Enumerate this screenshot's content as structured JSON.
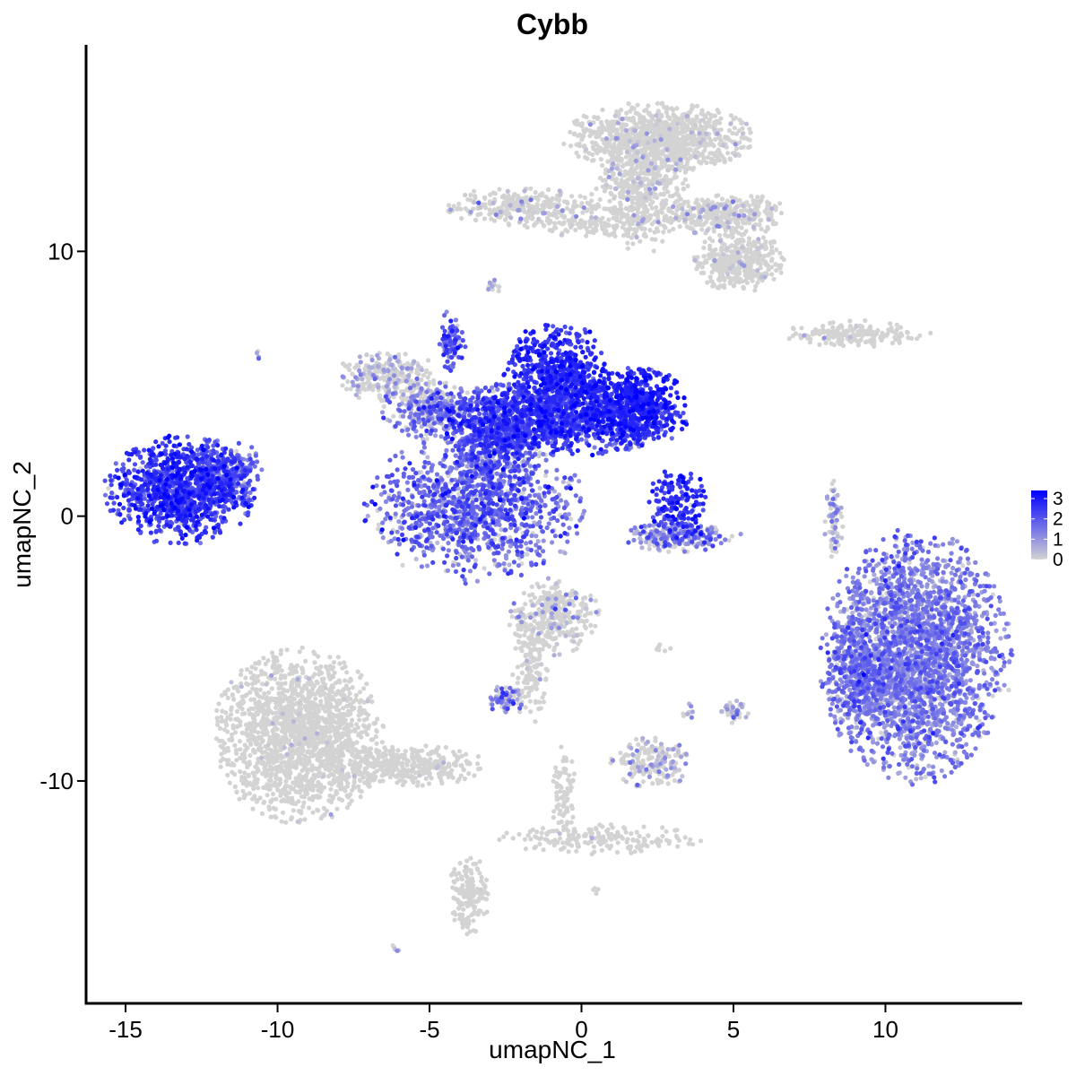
{
  "chart_data": {
    "type": "scatter",
    "title": "Cybb",
    "xlabel": "umapNC_1",
    "ylabel": "umapNC_2",
    "xlim": [
      -16.3,
      14.5
    ],
    "ylim": [
      -18.4,
      17.8
    ],
    "x_ticks": [
      -15,
      -10,
      -5,
      0,
      5,
      10
    ],
    "x_tick_labels": [
      "-15",
      "-10",
      "-5",
      "0",
      "5",
      "10"
    ],
    "y_ticks": [
      -10,
      0,
      10
    ],
    "y_tick_labels": [
      "-10",
      "0",
      "10"
    ],
    "grid": false,
    "legend": {
      "placement": "right",
      "type": "colorbar",
      "ticks": [
        0,
        1,
        2,
        3
      ],
      "tick_labels": [
        "0",
        "1",
        "2",
        "3"
      ],
      "low_color": "#d3d3d3",
      "high_color": "#0000ff"
    },
    "color_scale": {
      "min": 0,
      "max": 3.4,
      "low": "#d3d3d3",
      "high": "#0000ff"
    },
    "clusters": [
      {
        "name": "left-island",
        "cx": -13.2,
        "cy": 1.0,
        "rx": 1.5,
        "ry": 1.25,
        "n": 1100,
        "expr_mean": 2.4,
        "expr_sd": 0.5,
        "zero_frac": 0.02
      },
      {
        "name": "left-island-tail",
        "cx": -11.6,
        "cy": 1.6,
        "rx": 0.7,
        "ry": 0.8,
        "n": 220,
        "expr_mean": 1.9,
        "expr_sd": 0.6,
        "zero_frac": 0.05
      },
      {
        "name": "center-bulb",
        "cx": -3.5,
        "cy": 0.3,
        "rx": 2.2,
        "ry": 1.7,
        "n": 1200,
        "expr_mean": 1.7,
        "expr_sd": 0.6,
        "zero_frac": 0.1
      },
      {
        "name": "center-stem",
        "cx": -2.8,
        "cy": 2.9,
        "rx": 0.9,
        "ry": 1.3,
        "n": 500,
        "expr_mean": 2.0,
        "expr_sd": 0.6,
        "zero_frac": 0.05
      },
      {
        "name": "center-band",
        "cx": -0.8,
        "cy": 3.6,
        "rx": 2.6,
        "ry": 0.8,
        "n": 900,
        "expr_mean": 2.4,
        "expr_sd": 0.5,
        "zero_frac": 0.02
      },
      {
        "name": "center-top-lobe",
        "cx": -0.8,
        "cy": 5.2,
        "rx": 1.1,
        "ry": 1.3,
        "n": 700,
        "expr_mean": 2.6,
        "expr_sd": 0.4,
        "zero_frac": 0.01
      },
      {
        "name": "center-right-lobe",
        "cx": 1.7,
        "cy": 4.2,
        "rx": 1.1,
        "ry": 0.9,
        "n": 600,
        "expr_mean": 2.7,
        "expr_sd": 0.4,
        "zero_frac": 0.01
      },
      {
        "name": "center-left-arm",
        "cx": -6.4,
        "cy": 5.3,
        "rx": 1.0,
        "ry": 0.6,
        "n": 280,
        "expr_mean": 0.4,
        "expr_sd": 0.6,
        "zero_frac": 0.6
      },
      {
        "name": "center-left-bridge",
        "cx": -5.0,
        "cy": 4.0,
        "rx": 1.0,
        "ry": 0.7,
        "n": 300,
        "expr_mean": 1.3,
        "expr_sd": 0.7,
        "zero_frac": 0.2
      },
      {
        "name": "center-spike",
        "cx": -4.3,
        "cy": 6.6,
        "rx": 0.3,
        "ry": 0.7,
        "n": 90,
        "expr_mean": 2.0,
        "expr_sd": 0.6,
        "zero_frac": 0.1
      },
      {
        "name": "small-right-cluster",
        "cx": 3.2,
        "cy": 0.5,
        "rx": 0.6,
        "ry": 0.8,
        "n": 160,
        "expr_mean": 2.5,
        "expr_sd": 0.5,
        "zero_frac": 0.03
      },
      {
        "name": "small-right-arc",
        "cx": 3.3,
        "cy": -0.8,
        "rx": 1.2,
        "ry": 0.35,
        "n": 230,
        "expr_mean": 1.3,
        "expr_sd": 0.7,
        "zero_frac": 0.25
      },
      {
        "name": "right-big-cluster",
        "cx": 11.0,
        "cy": -5.3,
        "rx": 1.9,
        "ry": 2.9,
        "n": 2600,
        "expr_mean": 1.3,
        "expr_sd": 0.5,
        "zero_frac": 0.05
      },
      {
        "name": "right-big-cluster-left",
        "cx": 9.0,
        "cy": -6.0,
        "rx": 0.6,
        "ry": 1.5,
        "n": 300,
        "expr_mean": 1.4,
        "expr_sd": 0.6,
        "zero_frac": 0.05
      },
      {
        "name": "right-thin-streak",
        "cx": 8.3,
        "cy": -0.1,
        "rx": 0.2,
        "ry": 1.0,
        "n": 70,
        "expr_mean": 0.8,
        "expr_sd": 0.7,
        "zero_frac": 0.45
      },
      {
        "name": "top-funnel-head",
        "cx": 2.5,
        "cy": 14.3,
        "rx": 1.9,
        "ry": 0.8,
        "n": 900,
        "expr_mean": 0.1,
        "expr_sd": 0.5,
        "zero_frac": 0.9
      },
      {
        "name": "top-funnel-body",
        "cx": 2.0,
        "cy": 12.3,
        "rx": 1.0,
        "ry": 1.4,
        "n": 500,
        "expr_mean": 0.1,
        "expr_sd": 0.5,
        "zero_frac": 0.9
      },
      {
        "name": "top-right-arm",
        "cx": 4.7,
        "cy": 11.4,
        "rx": 1.3,
        "ry": 0.5,
        "n": 350,
        "expr_mean": 0.3,
        "expr_sd": 0.6,
        "zero_frac": 0.8
      },
      {
        "name": "top-right-blob",
        "cx": 5.2,
        "cy": 9.6,
        "rx": 0.9,
        "ry": 0.7,
        "n": 360,
        "expr_mean": 0.15,
        "expr_sd": 0.5,
        "zero_frac": 0.88
      },
      {
        "name": "top-left-arm",
        "cx": -1.8,
        "cy": 11.7,
        "rx": 1.6,
        "ry": 0.45,
        "n": 300,
        "expr_mean": 0.3,
        "expr_sd": 0.6,
        "zero_frac": 0.82
      },
      {
        "name": "top-left-arm-band",
        "cx": 0.2,
        "cy": 11.0,
        "rx": 1.3,
        "ry": 0.25,
        "n": 110,
        "expr_mean": 0.2,
        "expr_sd": 0.5,
        "zero_frac": 0.85
      },
      {
        "name": "right-upper-streak",
        "cx": 9.0,
        "cy": 6.9,
        "rx": 1.5,
        "ry": 0.3,
        "n": 180,
        "expr_mean": 0.05,
        "expr_sd": 0.4,
        "zero_frac": 0.92
      },
      {
        "name": "bottom-left-head",
        "cx": -9.3,
        "cy": -8.3,
        "rx": 1.7,
        "ry": 2.0,
        "n": 1700,
        "expr_mean": 0.02,
        "expr_sd": 0.3,
        "zero_frac": 0.97
      },
      {
        "name": "bottom-left-tail",
        "cx": -5.8,
        "cy": -9.4,
        "rx": 1.6,
        "ry": 0.5,
        "n": 350,
        "expr_mean": 0.03,
        "expr_sd": 0.3,
        "zero_frac": 0.96
      },
      {
        "name": "bottom-left-stalk",
        "cx": -3.7,
        "cy": -14.3,
        "rx": 0.4,
        "ry": 0.9,
        "n": 170,
        "expr_mean": 0.02,
        "expr_sd": 0.3,
        "zero_frac": 0.97
      },
      {
        "name": "bottom-center-top",
        "cx": -0.9,
        "cy": -3.8,
        "rx": 0.9,
        "ry": 0.9,
        "n": 330,
        "expr_mean": 0.3,
        "expr_sd": 0.6,
        "zero_frac": 0.8
      },
      {
        "name": "bottom-center-stem",
        "cx": -1.7,
        "cy": -5.9,
        "rx": 0.35,
        "ry": 1.2,
        "n": 110,
        "expr_mean": 0.1,
        "expr_sd": 0.4,
        "zero_frac": 0.9
      },
      {
        "name": "bottom-center-small",
        "cx": -2.5,
        "cy": -6.9,
        "rx": 0.4,
        "ry": 0.3,
        "n": 70,
        "expr_mean": 1.2,
        "expr_sd": 0.7,
        "zero_frac": 0.3
      },
      {
        "name": "bottom-mid-blob",
        "cx": 2.3,
        "cy": -9.3,
        "rx": 0.8,
        "ry": 0.6,
        "n": 180,
        "expr_mean": 0.6,
        "expr_sd": 0.7,
        "zero_frac": 0.6
      },
      {
        "name": "bottom-streak",
        "cx": 0.6,
        "cy": -12.2,
        "rx": 2.0,
        "ry": 0.35,
        "n": 180,
        "expr_mean": 0.02,
        "expr_sd": 0.3,
        "zero_frac": 0.97
      },
      {
        "name": "bottom-streak-vertical",
        "cx": -0.6,
        "cy": -10.5,
        "rx": 0.25,
        "ry": 1.1,
        "n": 80,
        "expr_mean": 0.02,
        "expr_sd": 0.3,
        "zero_frac": 0.97
      },
      {
        "name": "small-blob-5-7",
        "cx": 5.0,
        "cy": -7.4,
        "rx": 0.3,
        "ry": 0.3,
        "n": 45,
        "expr_mean": 0.8,
        "expr_sd": 0.7,
        "zero_frac": 0.5
      },
      {
        "name": "dot-left",
        "cx": -10.7,
        "cy": 6.1,
        "rx": 0.1,
        "ry": 0.1,
        "n": 5,
        "expr_mean": 1.0,
        "expr_sd": 0.5,
        "zero_frac": 0.3
      },
      {
        "name": "dot-upper-left",
        "cx": -2.9,
        "cy": 8.8,
        "rx": 0.15,
        "ry": 0.25,
        "n": 12,
        "expr_mean": 0.5,
        "expr_sd": 0.6,
        "zero_frac": 0.6
      },
      {
        "name": "dot-bottom",
        "cx": -6.1,
        "cy": -16.3,
        "rx": 0.1,
        "ry": 0.1,
        "n": 5,
        "expr_mean": 0.3,
        "expr_sd": 0.4,
        "zero_frac": 0.5
      },
      {
        "name": "dot-bottom-right",
        "cx": 0.5,
        "cy": -14.1,
        "rx": 0.1,
        "ry": 0.1,
        "n": 5,
        "expr_mean": 0.1,
        "expr_sd": 0.3,
        "zero_frac": 0.8
      },
      {
        "name": "dot-center-right",
        "cx": 2.7,
        "cy": -5.0,
        "rx": 0.2,
        "ry": 0.1,
        "n": 8,
        "expr_mean": 0.1,
        "expr_sd": 0.3,
        "zero_frac": 0.8
      },
      {
        "name": "dot-mid-right",
        "cx": 3.5,
        "cy": -7.5,
        "rx": 0.15,
        "ry": 0.3,
        "n": 10,
        "expr_mean": 0.6,
        "expr_sd": 0.6,
        "zero_frac": 0.5
      }
    ]
  }
}
